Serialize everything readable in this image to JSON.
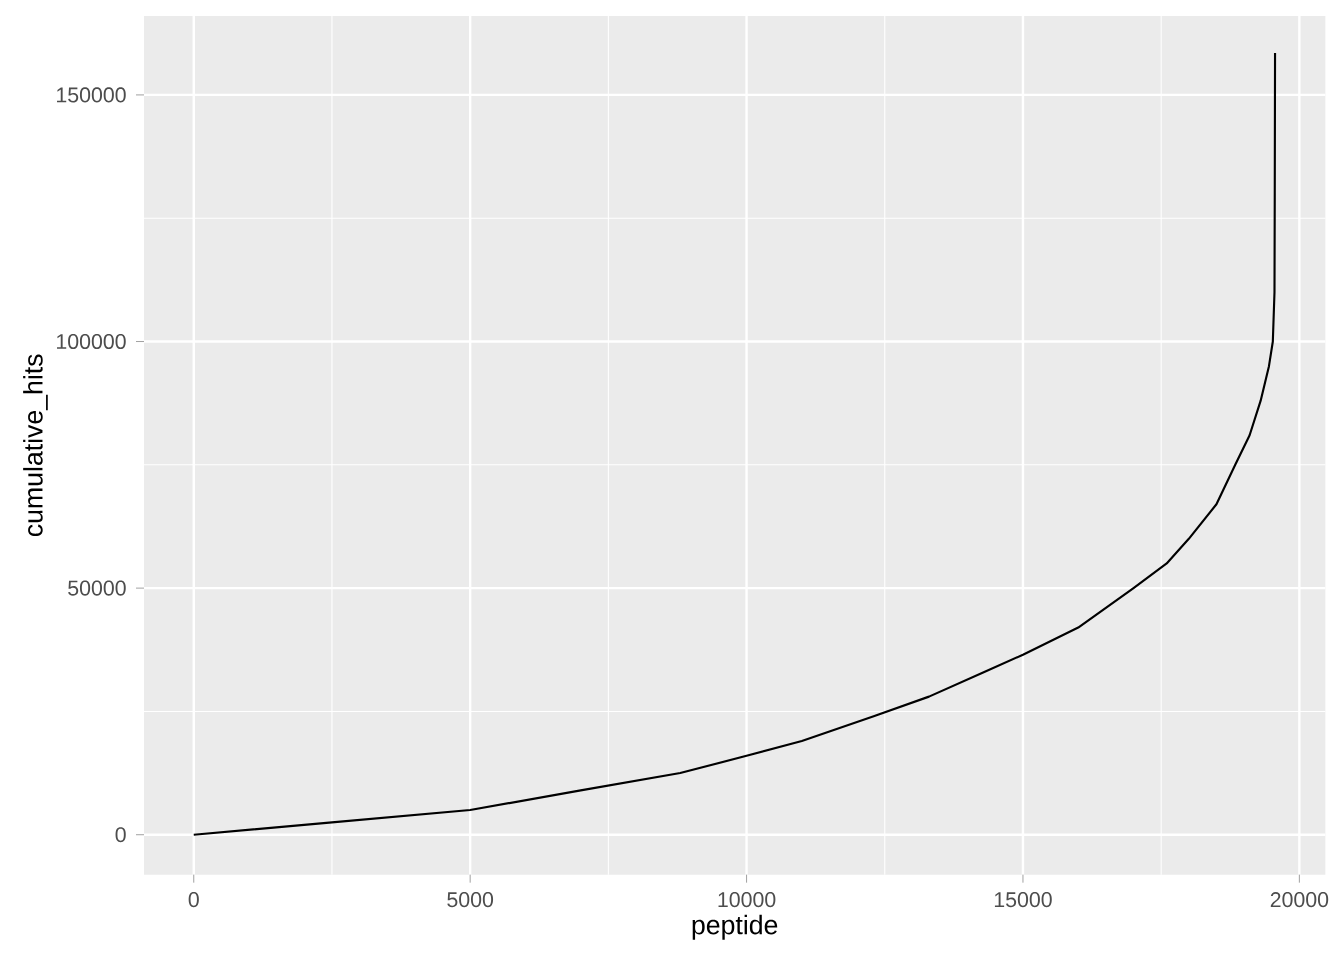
{
  "chart_data": {
    "type": "line",
    "xlabel": "peptide",
    "ylabel": "cumulative_hits",
    "xlim": [
      -900,
      20470
    ],
    "ylim": [
      -8100,
      166000
    ],
    "xticks": [
      0,
      5000,
      10000,
      15000,
      20000
    ],
    "yticks": [
      0,
      50000,
      100000,
      150000
    ],
    "grid": true,
    "series": [
      {
        "color": "#000000",
        "x": [
          0,
          2500,
          5000,
          7000,
          8800,
          10000,
          11000,
          12300,
          13300,
          14300,
          15000,
          16000,
          17000,
          17600,
          18000,
          18500,
          18840,
          19100,
          19300,
          19450,
          19520,
          19550,
          19555,
          19560
        ],
        "values": [
          0,
          2500,
          5000,
          9000,
          12500,
          16000,
          19000,
          24000,
          28000,
          33000,
          36500,
          42000,
          50000,
          55000,
          60000,
          67000,
          75000,
          81000,
          88000,
          95000,
          100000,
          110000,
          130000,
          158500
        ]
      }
    ]
  }
}
